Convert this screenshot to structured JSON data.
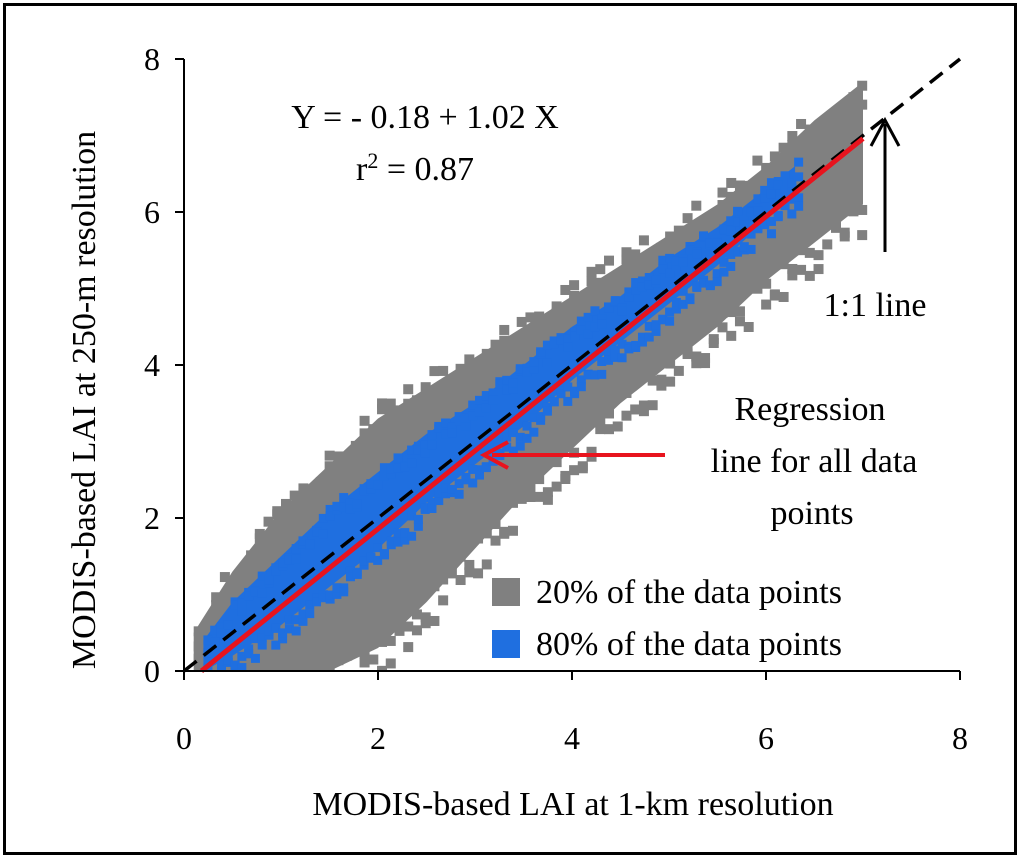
{
  "chart_data": {
    "type": "scatter",
    "title": "",
    "xlabel": "MODIS-based LAI at 1-km resolution",
    "ylabel": "MODIS-based LAI at 250-m resolution",
    "xlim": [
      0,
      8
    ],
    "ylim": [
      0,
      8
    ],
    "x_ticks": [
      "0",
      "2",
      "4",
      "6",
      "8"
    ],
    "y_ticks": [
      "0",
      "2",
      "4",
      "6",
      "8"
    ],
    "grid": false,
    "equation": {
      "text": "Y = - 0.18 + 1.02 X",
      "r2_prefix": "r",
      "r2_sup": "2",
      "r2_suffix": " = 0.87",
      "intercept": -0.18,
      "slope": 1.02,
      "r2": 0.87
    },
    "series": [
      {
        "name": "20% of the data points",
        "color": "#808080",
        "kind": "density-cloud",
        "envelope": {
          "x": [
            0.1,
            0.5,
            1.0,
            1.5,
            2.0,
            2.5,
            3.0,
            3.5,
            4.0,
            4.5,
            5.0,
            5.5,
            6.0,
            6.5,
            7.0
          ],
          "y_upper": [
            0.5,
            1.3,
            2.1,
            2.7,
            3.3,
            3.7,
            4.1,
            4.5,
            4.9,
            5.3,
            5.7,
            6.1,
            6.6,
            7.2,
            7.7
          ],
          "y_lower": [
            0.0,
            0.0,
            0.0,
            0.0,
            0.3,
            0.9,
            1.6,
            2.3,
            2.9,
            3.5,
            4.0,
            4.5,
            5.1,
            5.6,
            6.1
          ]
        }
      },
      {
        "name": "80% of the data points",
        "color": "#1f6fe0",
        "kind": "density-cloud",
        "envelope": {
          "x": [
            0.2,
            0.5,
            1.0,
            1.5,
            2.0,
            2.5,
            3.0,
            3.5,
            4.0,
            4.5,
            5.0,
            5.5,
            6.0,
            6.3
          ],
          "y_upper": [
            0.4,
            0.9,
            1.5,
            2.1,
            2.6,
            3.1,
            3.5,
            4.0,
            4.5,
            4.9,
            5.4,
            5.8,
            6.3,
            6.6
          ],
          "y_lower": [
            0.0,
            0.2,
            0.6,
            1.1,
            1.6,
            2.2,
            2.7,
            3.2,
            3.8,
            4.3,
            4.8,
            5.3,
            5.9,
            6.2
          ]
        }
      }
    ],
    "lines": [
      {
        "name": "1:1 line",
        "x": [
          0,
          8
        ],
        "y": [
          0,
          8
        ],
        "style": "dashed",
        "color": "#000000"
      },
      {
        "name": "Regression line",
        "x": [
          0.18,
          7.0
        ],
        "y": [
          0.0,
          6.96
        ],
        "style": "solid",
        "color": "#e8141e"
      }
    ],
    "legend": {
      "position": "bottom-right",
      "items": [
        {
          "label": "20% of the data points",
          "color": "#808080"
        },
        {
          "label": "80% of the data points",
          "color": "#1f6fe0"
        }
      ]
    },
    "annotations": {
      "one_to_one": {
        "text": "1:1 line",
        "arrow_to": [
          7.3,
          7.35
        ]
      },
      "regression": {
        "lines": [
          "Regression",
          "line for all data",
          "points"
        ],
        "arrow_to": [
          3.05,
          2.8
        ],
        "arrow_color": "#e8141e"
      }
    }
  }
}
